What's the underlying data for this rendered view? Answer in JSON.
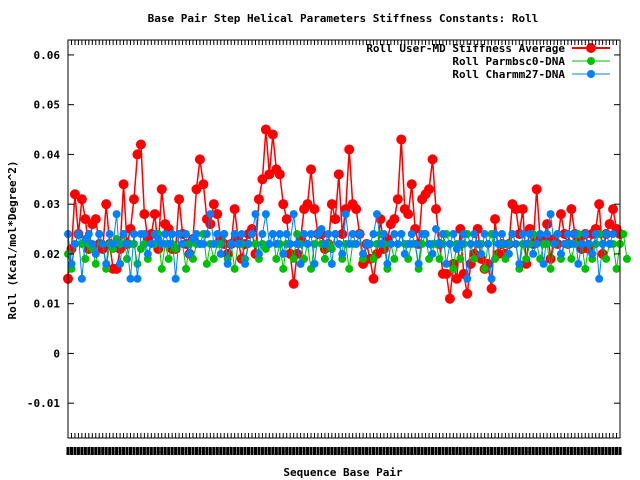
{
  "chart_data": {
    "type": "line",
    "title": "Base Pair Step Helical Parameters Stiffness Constants: Roll",
    "xlabel": "Sequence Base Pair",
    "ylabel": "Roll (Kcal/mol*Degree^2)",
    "ylim": [
      -0.017,
      0.063
    ],
    "yticks": [
      -0.01,
      0,
      0.01,
      0.02,
      0.03,
      0.04,
      0.05,
      0.06
    ],
    "ytick_labels": [
      "-0.01",
      "0",
      "0.01",
      "0.02",
      "0.03",
      "0.04",
      "0.05",
      "0.06"
    ],
    "grid": false,
    "legend_position": "top-right",
    "x_tick_labels_note": "dense overlapping base-pair labels",
    "series": [
      {
        "name": "Roll User-MD Stiffness Average",
        "color": "#ff0000",
        "values": [
          0.015,
          0.021,
          0.032,
          0.024,
          0.031,
          0.027,
          0.021,
          0.026,
          0.027,
          0.022,
          0.021,
          0.03,
          0.022,
          0.017,
          0.017,
          0.021,
          0.034,
          0.022,
          0.025,
          0.031,
          0.04,
          0.042,
          0.028,
          0.023,
          0.024,
          0.028,
          0.021,
          0.033,
          0.026,
          0.025,
          0.021,
          0.021,
          0.031,
          0.024,
          0.022,
          0.02,
          0.023,
          0.033,
          0.039,
          0.034,
          0.027,
          0.026,
          0.03,
          0.028,
          0.023,
          0.022,
          0.02,
          0.022,
          0.029,
          0.023,
          0.019,
          0.022,
          0.024,
          0.025,
          0.02,
          0.031,
          0.035,
          0.045,
          0.036,
          0.044,
          0.037,
          0.036,
          0.03,
          0.027,
          0.02,
          0.014,
          0.02,
          0.023,
          0.029,
          0.03,
          0.037,
          0.029,
          0.024,
          0.024,
          0.021,
          0.022,
          0.03,
          0.027,
          0.036,
          0.024,
          0.029,
          0.041,
          0.03,
          0.029,
          0.024,
          0.018,
          0.022,
          0.019,
          0.015,
          0.02,
          0.027,
          0.021,
          0.023,
          0.026,
          0.027,
          0.031,
          0.043,
          0.029,
          0.028,
          0.034,
          0.025,
          0.022,
          0.031,
          0.032,
          0.033,
          0.039,
          0.029,
          0.022,
          0.016,
          0.016,
          0.011,
          0.018,
          0.015,
          0.025,
          0.016,
          0.012,
          0.018,
          0.02,
          0.025,
          0.019,
          0.017,
          0.018,
          0.013,
          0.027,
          0.02,
          0.022,
          0.02,
          0.022,
          0.03,
          0.029,
          0.024,
          0.029,
          0.018,
          0.025,
          0.022,
          0.033,
          0.023,
          0.023,
          0.026,
          0.019,
          0.023,
          0.022,
          0.028,
          0.024,
          0.022,
          0.029,
          0.024,
          0.023,
          0.021,
          0.024,
          0.021,
          0.024,
          0.025,
          0.03,
          0.02,
          0.024,
          0.026,
          0.029,
          0.025,
          0.024
        ]
      },
      {
        "name": "Roll Parmbsc0-DNA",
        "color": "#00c000",
        "values": [
          0.02,
          0.017,
          0.022,
          0.024,
          0.022,
          0.019,
          0.022,
          0.021,
          0.018,
          0.024,
          0.022,
          0.017,
          0.022,
          0.021,
          0.023,
          0.022,
          0.024,
          0.019,
          0.022,
          0.022,
          0.018,
          0.021,
          0.022,
          0.019,
          0.022,
          0.022,
          0.024,
          0.017,
          0.022,
          0.019,
          0.022,
          0.021,
          0.024,
          0.022,
          0.017,
          0.022,
          0.019,
          0.022,
          0.022,
          0.024,
          0.018,
          0.022,
          0.019,
          0.022,
          0.022,
          0.024,
          0.019,
          0.022,
          0.017,
          0.022,
          0.022,
          0.019,
          0.022,
          0.024,
          0.022,
          0.019,
          0.022,
          0.021,
          0.022,
          0.024,
          0.019,
          0.022,
          0.017,
          0.022,
          0.022,
          0.019,
          0.024,
          0.022,
          0.019,
          0.022,
          0.017,
          0.022,
          0.024,
          0.022,
          0.019,
          0.022,
          0.021,
          0.024,
          0.022,
          0.019,
          0.022,
          0.017,
          0.022,
          0.022,
          0.024,
          0.019,
          0.022,
          0.022,
          0.019,
          0.022,
          0.024,
          0.022,
          0.017,
          0.022,
          0.019,
          0.022,
          0.024,
          0.022,
          0.019,
          0.022,
          0.022,
          0.017,
          0.022,
          0.024,
          0.019,
          0.022,
          0.022,
          0.019,
          0.022,
          0.024,
          0.022,
          0.017,
          0.022,
          0.019,
          0.022,
          0.024,
          0.022,
          0.019,
          0.022,
          0.022,
          0.017,
          0.022,
          0.024,
          0.019,
          0.022,
          0.022,
          0.019,
          0.022,
          0.024,
          0.022,
          0.017,
          0.022,
          0.019,
          0.022,
          0.024,
          0.022,
          0.019,
          0.022,
          0.022,
          0.017,
          0.022,
          0.024,
          0.019,
          0.022,
          0.022,
          0.019,
          0.022,
          0.024,
          0.022,
          0.017,
          0.022,
          0.019,
          0.022,
          0.024,
          0.022,
          0.019,
          0.022,
          0.022,
          0.017,
          0.022,
          0.024,
          0.019
        ]
      },
      {
        "name": "Roll Charmm27-DNA",
        "color": "#0080ff",
        "values": [
          0.024,
          0.018,
          0.022,
          0.024,
          0.015,
          0.023,
          0.024,
          0.022,
          0.02,
          0.024,
          0.022,
          0.018,
          0.024,
          0.022,
          0.028,
          0.018,
          0.024,
          0.022,
          0.015,
          0.024,
          0.015,
          0.024,
          0.024,
          0.02,
          0.022,
          0.024,
          0.023,
          0.022,
          0.024,
          0.022,
          0.024,
          0.015,
          0.024,
          0.022,
          0.024,
          0.02,
          0.023,
          0.024,
          0.022,
          0.022,
          0.024,
          0.028,
          0.022,
          0.024,
          0.02,
          0.024,
          0.018,
          0.022,
          0.024,
          0.022,
          0.024,
          0.018,
          0.022,
          0.024,
          0.028,
          0.02,
          0.024,
          0.028,
          0.022,
          0.024,
          0.022,
          0.024,
          0.02,
          0.024,
          0.022,
          0.028,
          0.022,
          0.018,
          0.024,
          0.022,
          0.024,
          0.018,
          0.024,
          0.025,
          0.022,
          0.024,
          0.018,
          0.024,
          0.022,
          0.02,
          0.028,
          0.022,
          0.024,
          0.022,
          0.024,
          0.02,
          0.022,
          0.022,
          0.024,
          0.028,
          0.022,
          0.024,
          0.018,
          0.022,
          0.024,
          0.022,
          0.024,
          0.02,
          0.022,
          0.024,
          0.022,
          0.018,
          0.024,
          0.024,
          0.022,
          0.02,
          0.025,
          0.022,
          0.024,
          0.018,
          0.022,
          0.024,
          0.021,
          0.022,
          0.024,
          0.015,
          0.022,
          0.024,
          0.022,
          0.02,
          0.024,
          0.022,
          0.015,
          0.024,
          0.022,
          0.024,
          0.022,
          0.02,
          0.024,
          0.022,
          0.018,
          0.024,
          0.022,
          0.024,
          0.02,
          0.022,
          0.024,
          0.018,
          0.024,
          0.028,
          0.022,
          0.024,
          0.02,
          0.022,
          0.024,
          0.022,
          0.024,
          0.018,
          0.022,
          0.024,
          0.022,
          0.02,
          0.024,
          0.015,
          0.022,
          0.024,
          0.022,
          0.024
        ]
      }
    ]
  }
}
